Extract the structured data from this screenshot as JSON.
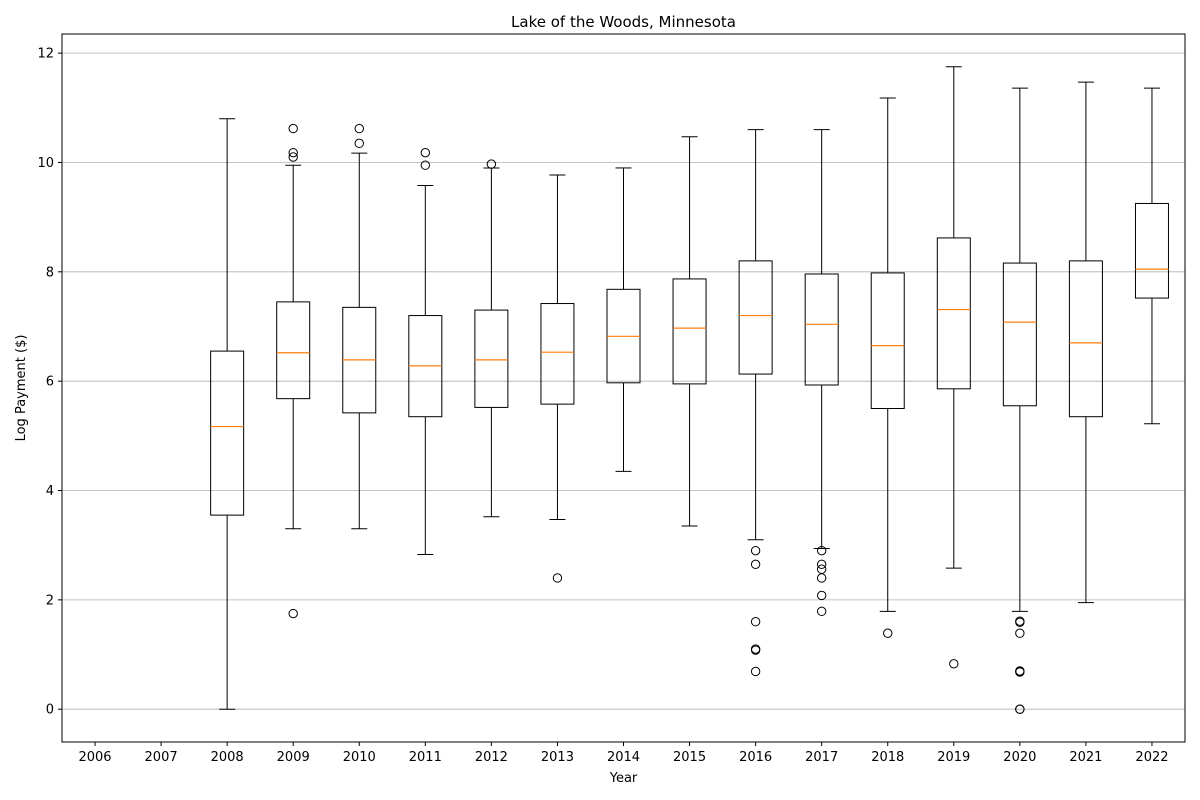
{
  "chart_data": {
    "type": "boxplot",
    "title": "Lake of the Woods, Minnesota",
    "xlabel": "Year",
    "ylabel": "Log Payment ($)",
    "categories": [
      "2006",
      "2007",
      "2008",
      "2009",
      "2010",
      "2011",
      "2012",
      "2013",
      "2014",
      "2015",
      "2016",
      "2017",
      "2018",
      "2019",
      "2020",
      "2021",
      "2022"
    ],
    "ylim": [
      -0.6,
      12.35
    ],
    "yticks": [
      0,
      2,
      4,
      6,
      8,
      10,
      12
    ],
    "grid": "y",
    "colors": {
      "box": "#000000",
      "median": "#ff7f0e",
      "grid": "#b0b0b0"
    },
    "boxes": [
      {
        "x": "2006",
        "empty": true
      },
      {
        "x": "2007",
        "empty": true
      },
      {
        "x": "2008",
        "whislo": 0.0,
        "q1": 3.55,
        "med": 5.17,
        "q3": 6.55,
        "whishi": 10.8,
        "fliers": []
      },
      {
        "x": "2009",
        "whislo": 3.3,
        "q1": 5.68,
        "med": 6.52,
        "q3": 7.45,
        "whishi": 9.95,
        "fliers": [
          10.1,
          10.18,
          10.62,
          1.75
        ]
      },
      {
        "x": "2010",
        "whislo": 3.3,
        "q1": 5.42,
        "med": 6.39,
        "q3": 7.35,
        "whishi": 10.17,
        "fliers": [
          10.35,
          10.62
        ]
      },
      {
        "x": "2011",
        "whislo": 2.83,
        "q1": 5.35,
        "med": 6.28,
        "q3": 7.2,
        "whishi": 9.58,
        "fliers": [
          9.95,
          10.18
        ]
      },
      {
        "x": "2012",
        "whislo": 3.52,
        "q1": 5.52,
        "med": 6.39,
        "q3": 7.3,
        "whishi": 9.9,
        "fliers": [
          9.97
        ]
      },
      {
        "x": "2013",
        "whislo": 3.47,
        "q1": 5.58,
        "med": 6.53,
        "q3": 7.42,
        "whishi": 9.77,
        "fliers": [
          2.4
        ]
      },
      {
        "x": "2014",
        "whislo": 4.35,
        "q1": 5.97,
        "med": 6.82,
        "q3": 7.68,
        "whishi": 9.9,
        "fliers": []
      },
      {
        "x": "2015",
        "whislo": 3.35,
        "q1": 5.95,
        "med": 6.97,
        "q3": 7.87,
        "whishi": 10.47,
        "fliers": []
      },
      {
        "x": "2016",
        "whislo": 3.1,
        "q1": 6.13,
        "med": 7.2,
        "q3": 8.2,
        "whishi": 10.6,
        "fliers": [
          2.9,
          2.65,
          1.6,
          1.1,
          1.08,
          0.69
        ]
      },
      {
        "x": "2017",
        "whislo": 2.94,
        "q1": 5.93,
        "med": 7.04,
        "q3": 7.96,
        "whishi": 10.6,
        "fliers": [
          2.9,
          2.65,
          2.56,
          2.4,
          2.08,
          1.79
        ]
      },
      {
        "x": "2018",
        "whislo": 1.79,
        "q1": 5.5,
        "med": 6.65,
        "q3": 7.98,
        "whishi": 11.18,
        "fliers": [
          1.39
        ]
      },
      {
        "x": "2019",
        "whislo": 2.58,
        "q1": 5.86,
        "med": 7.31,
        "q3": 8.62,
        "whishi": 11.75,
        "fliers": [
          0.83
        ]
      },
      {
        "x": "2020",
        "whislo": 1.79,
        "q1": 5.55,
        "med": 7.08,
        "q3": 8.16,
        "whishi": 11.36,
        "fliers": [
          1.61,
          1.59,
          1.39,
          0.7,
          0.69,
          0.68,
          0.0,
          0.0
        ]
      },
      {
        "x": "2021",
        "whislo": 1.95,
        "q1": 5.35,
        "med": 6.7,
        "q3": 8.2,
        "whishi": 11.47,
        "fliers": []
      },
      {
        "x": "2022",
        "whislo": 5.22,
        "q1": 7.52,
        "med": 8.05,
        "q3": 9.25,
        "whishi": 11.36,
        "fliers": []
      }
    ]
  }
}
